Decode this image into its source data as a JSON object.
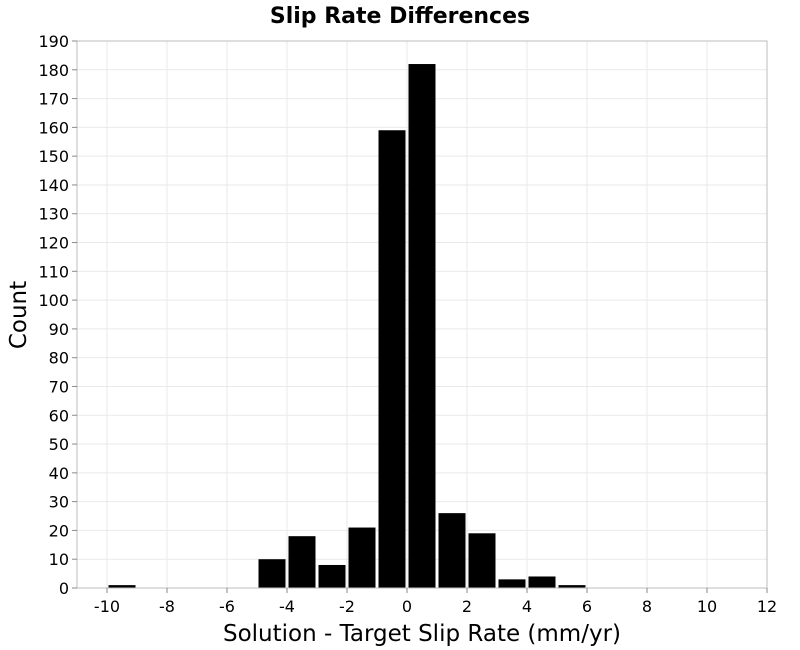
{
  "chart_data": {
    "type": "bar",
    "title": "Slip Rate Differences",
    "xlabel": "Solution - Target Slip Rate (mm/yr)",
    "ylabel": "Count",
    "xlim": [
      -11,
      12
    ],
    "ylim": [
      0,
      190
    ],
    "x_ticks": [
      -10,
      -8,
      -6,
      -4,
      -2,
      0,
      2,
      4,
      6,
      8,
      10,
      12
    ],
    "y_ticks": [
      0,
      10,
      20,
      30,
      40,
      50,
      60,
      70,
      80,
      90,
      100,
      110,
      120,
      130,
      140,
      150,
      160,
      170,
      180,
      190
    ],
    "bin_width": 1,
    "bars": [
      {
        "x": -9.5,
        "value": 1
      },
      {
        "x": -4.5,
        "value": 10
      },
      {
        "x": -3.5,
        "value": 18
      },
      {
        "x": -2.5,
        "value": 8
      },
      {
        "x": -1.5,
        "value": 21
      },
      {
        "x": -0.5,
        "value": 159
      },
      {
        "x": 0.5,
        "value": 182
      },
      {
        "x": 1.5,
        "value": 26
      },
      {
        "x": 2.5,
        "value": 19
      },
      {
        "x": 3.5,
        "value": 3
      },
      {
        "x": 4.5,
        "value": 4
      },
      {
        "x": 5.5,
        "value": 1
      }
    ],
    "bar_color": "#000000",
    "grid": true
  }
}
